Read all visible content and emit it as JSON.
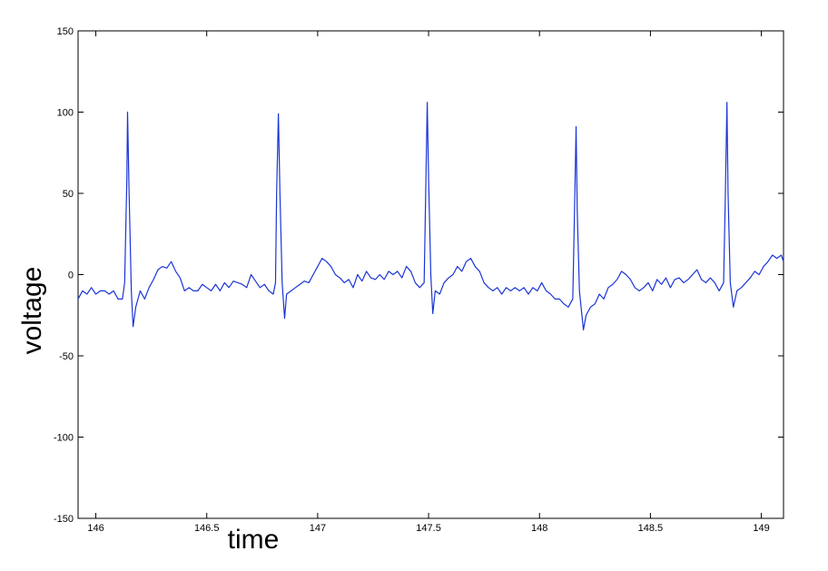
{
  "chart_data": {
    "type": "line",
    "xlabel": "time",
    "ylabel": "voltage",
    "xlim": [
      145.92,
      149.1
    ],
    "ylim": [
      -150,
      150
    ],
    "xticks": [
      146,
      146.5,
      147,
      147.5,
      148,
      148.5,
      149
    ],
    "yticks": [
      -150,
      -100,
      -50,
      0,
      50,
      100,
      150
    ],
    "grid": false,
    "series": [
      {
        "name": "voltage",
        "color": "#1a35d6",
        "x": [
          145.92,
          145.94,
          145.96,
          145.98,
          146.0,
          146.02,
          146.04,
          146.06,
          146.08,
          146.1,
          146.12,
          146.13,
          146.14,
          146.143,
          146.15,
          146.16,
          146.168,
          146.18,
          146.2,
          146.22,
          146.24,
          146.26,
          146.28,
          146.3,
          146.32,
          146.34,
          146.36,
          146.38,
          146.4,
          146.42,
          146.44,
          146.46,
          146.48,
          146.5,
          146.52,
          146.54,
          146.56,
          146.58,
          146.6,
          146.62,
          146.64,
          146.66,
          146.68,
          146.7,
          146.72,
          146.74,
          146.76,
          146.78,
          146.8,
          146.81,
          146.815,
          146.823,
          146.83,
          146.84,
          146.851,
          146.86,
          146.88,
          146.9,
          146.92,
          146.94,
          146.96,
          146.98,
          147.0,
          147.02,
          147.04,
          147.06,
          147.08,
          147.1,
          147.12,
          147.14,
          147.16,
          147.18,
          147.2,
          147.22,
          147.24,
          147.26,
          147.28,
          147.3,
          147.32,
          147.34,
          147.36,
          147.38,
          147.4,
          147.42,
          147.44,
          147.46,
          147.48,
          147.487,
          147.494,
          147.5,
          147.51,
          147.519,
          147.53,
          147.55,
          147.57,
          147.59,
          147.61,
          147.63,
          147.65,
          147.67,
          147.69,
          147.71,
          147.73,
          147.75,
          147.77,
          147.79,
          147.81,
          147.83,
          147.85,
          147.87,
          147.89,
          147.91,
          147.93,
          147.95,
          147.97,
          147.99,
          148.01,
          148.03,
          148.05,
          148.07,
          148.09,
          148.11,
          148.13,
          148.15,
          148.158,
          148.165,
          148.17,
          148.18,
          148.198,
          148.21,
          148.23,
          148.25,
          148.27,
          148.29,
          148.31,
          148.33,
          148.35,
          148.37,
          148.39,
          148.41,
          148.43,
          148.45,
          148.47,
          148.49,
          148.51,
          148.53,
          148.55,
          148.57,
          148.59,
          148.61,
          148.63,
          148.65,
          148.67,
          148.69,
          148.71,
          148.73,
          148.75,
          148.77,
          148.79,
          148.81,
          148.83,
          148.838,
          148.845,
          148.85,
          148.86,
          148.874,
          148.89,
          148.91,
          148.93,
          148.95,
          148.97,
          148.99,
          149.01,
          149.03,
          149.05,
          149.07,
          149.09,
          149.1
        ],
        "values": [
          -15,
          -10,
          -12,
          -8,
          -12,
          -10,
          -10,
          -12,
          -10,
          -15,
          -15,
          -5,
          60,
          100,
          50,
          -10,
          -32,
          -20,
          -10,
          -15,
          -8,
          -3,
          3,
          5,
          4,
          8,
          2,
          -2,
          -10,
          -8,
          -10,
          -10,
          -6,
          -8,
          -10,
          -6,
          -10,
          -5,
          -8,
          -4,
          -5,
          -6,
          -8,
          0,
          -4,
          -8,
          -6,
          -10,
          -12,
          -5,
          50,
          99,
          50,
          -5,
          -27,
          -12,
          -10,
          -8,
          -6,
          -4,
          -5,
          0,
          5,
          10,
          8,
          5,
          0,
          -2,
          -5,
          -3,
          -8,
          0,
          -4,
          2,
          -2,
          -3,
          0,
          -3,
          2,
          0,
          2,
          -2,
          5,
          2,
          -5,
          -8,
          -5,
          50,
          106,
          60,
          0,
          -24,
          -10,
          -12,
          -5,
          -2,
          0,
          5,
          2,
          8,
          10,
          5,
          2,
          -5,
          -8,
          -10,
          -8,
          -12,
          -8,
          -10,
          -8,
          -10,
          -8,
          -12,
          -8,
          -10,
          -5,
          -10,
          -12,
          -15,
          -15,
          -18,
          -20,
          -15,
          40,
          91,
          40,
          -10,
          -34,
          -25,
          -20,
          -18,
          -12,
          -15,
          -8,
          -6,
          -3,
          2,
          0,
          -3,
          -8,
          -10,
          -8,
          -5,
          -10,
          -3,
          -6,
          -2,
          -8,
          -3,
          -2,
          -5,
          -3,
          0,
          3,
          -3,
          -5,
          -2,
          -5,
          -10,
          -5,
          50,
          106,
          50,
          -5,
          -20,
          -10,
          -8,
          -5,
          -2,
          2,
          0,
          5,
          8,
          12,
          10,
          12,
          8
        ]
      }
    ]
  }
}
